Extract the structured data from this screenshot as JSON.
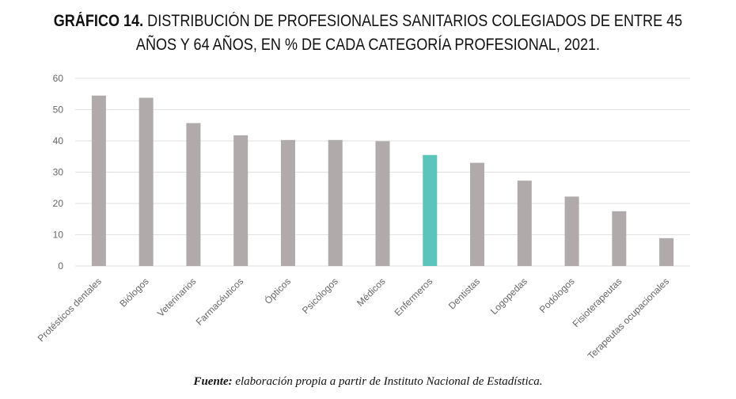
{
  "header": {
    "lead": "GRÁFICO 14.",
    "line1": " DISTRIBUCIÓN DE PROFESIONALES SANITARIOS COLEGIADOS DE ENTRE 45",
    "line2": "AÑOS Y 64 AÑOS, EN % DE CADA CATEGORÍA PROFESIONAL, 2021."
  },
  "footer": {
    "label": "Fuente:",
    "text": " elaboración propia a partir de Instituto Nacional de Estadística."
  },
  "colors": {
    "bar": "#b0aaaa",
    "highlight": "#5bc4bb",
    "grid": "#e2e2e2",
    "tick": "#666666"
  },
  "chart_data": {
    "type": "bar",
    "categories": [
      "Protésticos dentales",
      "Biólogos",
      "Veterinarios",
      "Farmacéuticos",
      "Ópticos",
      "Psicólogos",
      "Médicos",
      "Enfermeros",
      "Dentistas",
      "Logopedas",
      "Podólogos",
      "Fisioterapeutas",
      "Terapeutas ocupacionales"
    ],
    "values": [
      54.5,
      53.8,
      45.7,
      41.8,
      40.3,
      40.3,
      39.9,
      35.5,
      33.0,
      27.3,
      22.2,
      17.5,
      8.9
    ],
    "highlight_category": "Enfermeros",
    "yticks": [
      0,
      10,
      20,
      30,
      40,
      50,
      60
    ],
    "ylim": [
      0,
      60
    ],
    "grid": true,
    "legend": "none"
  }
}
